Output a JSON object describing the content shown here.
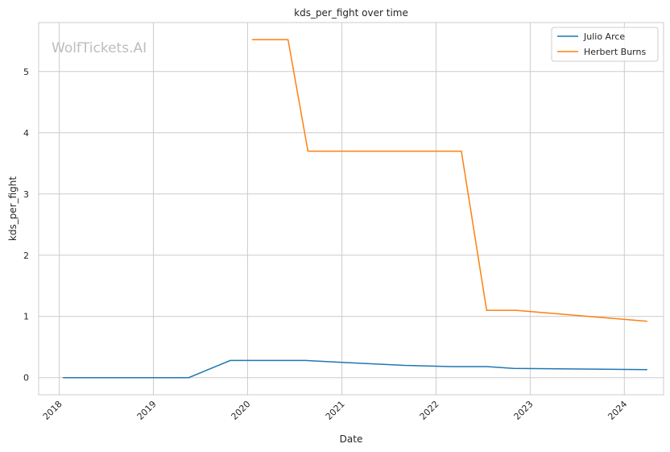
{
  "watermark": "WolfTickets.AI",
  "chart_data": {
    "type": "line",
    "title": "kds_per_fight over time",
    "xlabel": "Date",
    "ylabel": "kds_per_fight",
    "x_ticks": [
      "2018",
      "2019",
      "2020",
      "2021",
      "2022",
      "2023",
      "2024"
    ],
    "y_ticks": [
      "0",
      "1",
      "2",
      "3",
      "4",
      "5"
    ],
    "xlim": [
      "2017-10-13",
      "2024-06-01"
    ],
    "ylim": [
      -0.28,
      5.8
    ],
    "grid": true,
    "legend_position": "top-right",
    "series": [
      {
        "name": "Julio Arce",
        "color": "#1f77b4",
        "points": [
          [
            "2018-01-15",
            0.0
          ],
          [
            "2019-05-18",
            0.0
          ],
          [
            "2019-10-26",
            0.28
          ],
          [
            "2020-08-15",
            0.28
          ],
          [
            "2021-01-01",
            0.25
          ],
          [
            "2021-09-01",
            0.2
          ],
          [
            "2022-03-01",
            0.18
          ],
          [
            "2022-07-16",
            0.18
          ],
          [
            "2022-10-29",
            0.15
          ],
          [
            "2024-03-30",
            0.13
          ]
        ]
      },
      {
        "name": "Herbert Burns",
        "color": "#ff7f0e",
        "points": [
          [
            "2020-01-18",
            5.52
          ],
          [
            "2020-06-06",
            5.52
          ],
          [
            "2020-08-22",
            3.7
          ],
          [
            "2022-04-09",
            3.7
          ],
          [
            "2022-07-16",
            1.1
          ],
          [
            "2022-11-05",
            1.1
          ],
          [
            "2024-03-30",
            0.92
          ]
        ]
      }
    ]
  }
}
